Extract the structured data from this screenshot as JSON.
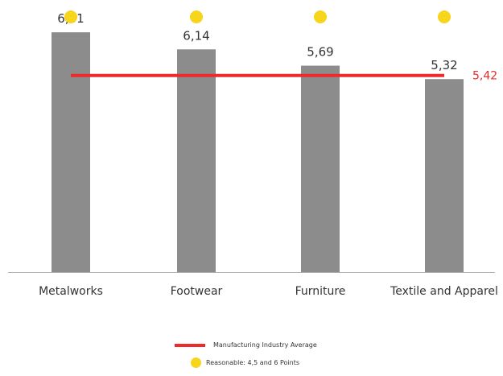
{
  "chart_data": {
    "type": "bar",
    "categories": [
      "Metalworks",
      "Footwear",
      "Furniture",
      "Textile and Apparel"
    ],
    "values": [
      6.61,
      6.14,
      5.69,
      5.32
    ],
    "value_labels": [
      "6,61",
      "6,14",
      "5,69",
      "5,32"
    ],
    "reference_line": {
      "value": 5.42,
      "label": "5,42",
      "color": "#ee2b2b"
    },
    "markers": {
      "categories": [
        "Metalworks",
        "Footwear",
        "Furniture",
        "Textile and Apparel"
      ],
      "color": "#f6d51b"
    },
    "ylim": [
      0,
      7.5
    ],
    "grid": false,
    "bar_color": "#8c8c8c",
    "legend": {
      "position": "bottom",
      "items": [
        {
          "type": "line",
          "label": "Manufacturing Industry Average",
          "color": "#ee2b2b"
        },
        {
          "type": "dot",
          "label": "Reasonable: 4,5 and 6 Points",
          "color": "#f6d51b"
        }
      ]
    }
  }
}
